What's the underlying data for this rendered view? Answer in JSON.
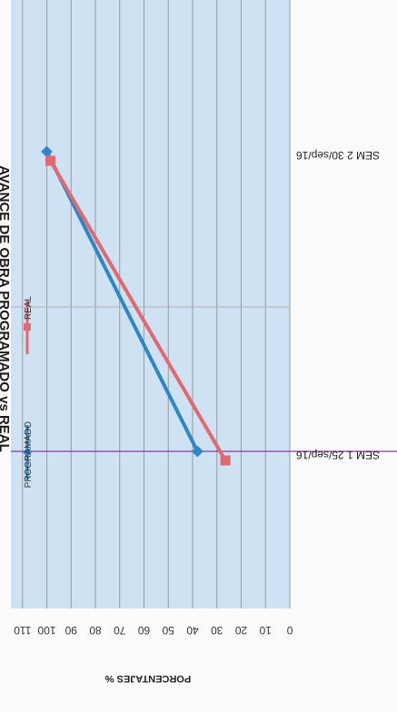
{
  "chart_data": {
    "type": "line",
    "title": "AVANCE DE OBRA PROGRAMADO vs REAL",
    "ylabel": "PORCENTAJES %",
    "xlabel": "",
    "categories": [
      "SEM 1   25/sep/16",
      "SEM 2   30/sep/16"
    ],
    "ylim": [
      0,
      110
    ],
    "yticks": [
      0,
      10,
      20,
      30,
      40,
      50,
      60,
      70,
      80,
      90,
      100,
      110
    ],
    "grid": true,
    "legend": "left",
    "orientation": "rotated-90",
    "series": [
      {
        "name": "PROGRAMADO",
        "values": [
          38,
          100
        ],
        "color": "#2e86c8",
        "marker": "diamond"
      },
      {
        "name": "REAL",
        "values": [
          28,
          100
        ],
        "color": "#e06a72",
        "marker": "square"
      }
    ],
    "colors": {
      "plot_background": "#cfe2f3",
      "gridline": "#9a9a9a",
      "highlight_line": "#8a3a9a"
    }
  }
}
